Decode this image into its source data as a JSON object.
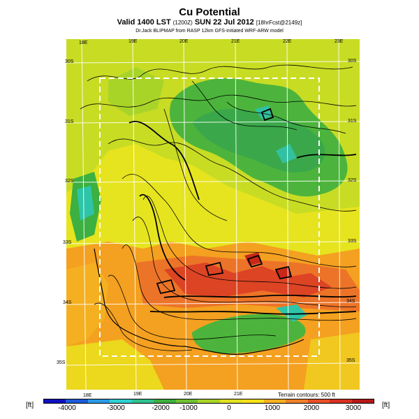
{
  "title": "Cu Potential",
  "subtitle_main": "Valid 1400 LST",
  "subtitle_small": "(1200Z)",
  "subtitle_date": "SUN 22 Jul 2012",
  "subtitle_fcst": "[18hrFcst@2149z]",
  "credit": "Dr.Jack BLIPMAP from RASP 12km GFS-initiated WRF-ARW model",
  "terrain_note": "Terrain contours: 500 ft",
  "units": {
    "left": "[ft]",
    "right": "[ft]"
  },
  "top_lon_labels": [
    "18E",
    "19E",
    "20E",
    "21E",
    "22E",
    "23E"
  ],
  "bottom_lon_labels": [
    "18E",
    "19E",
    "20E",
    "21E"
  ],
  "left_lat_labels": [
    "30S",
    "31S",
    "32S",
    "33S",
    "34S",
    "35S"
  ],
  "right_lat_labels": [
    "30S",
    "31S",
    "32S",
    "33S",
    "34S",
    "35S"
  ],
  "colorbar": {
    "colors": [
      "#1010c0",
      "#1c5ad8",
      "#2a9ae6",
      "#2ed0d0",
      "#30c090",
      "#3cb040",
      "#70c030",
      "#a8d428",
      "#e0e020",
      "#f4e018",
      "#f8b020",
      "#f08028",
      "#e85028",
      "#d83020",
      "#b81818"
    ],
    "ticks": [
      "-4000",
      "-3000",
      "-2000",
      "-1000",
      "0",
      "1000",
      "2000",
      "3000"
    ]
  }
}
